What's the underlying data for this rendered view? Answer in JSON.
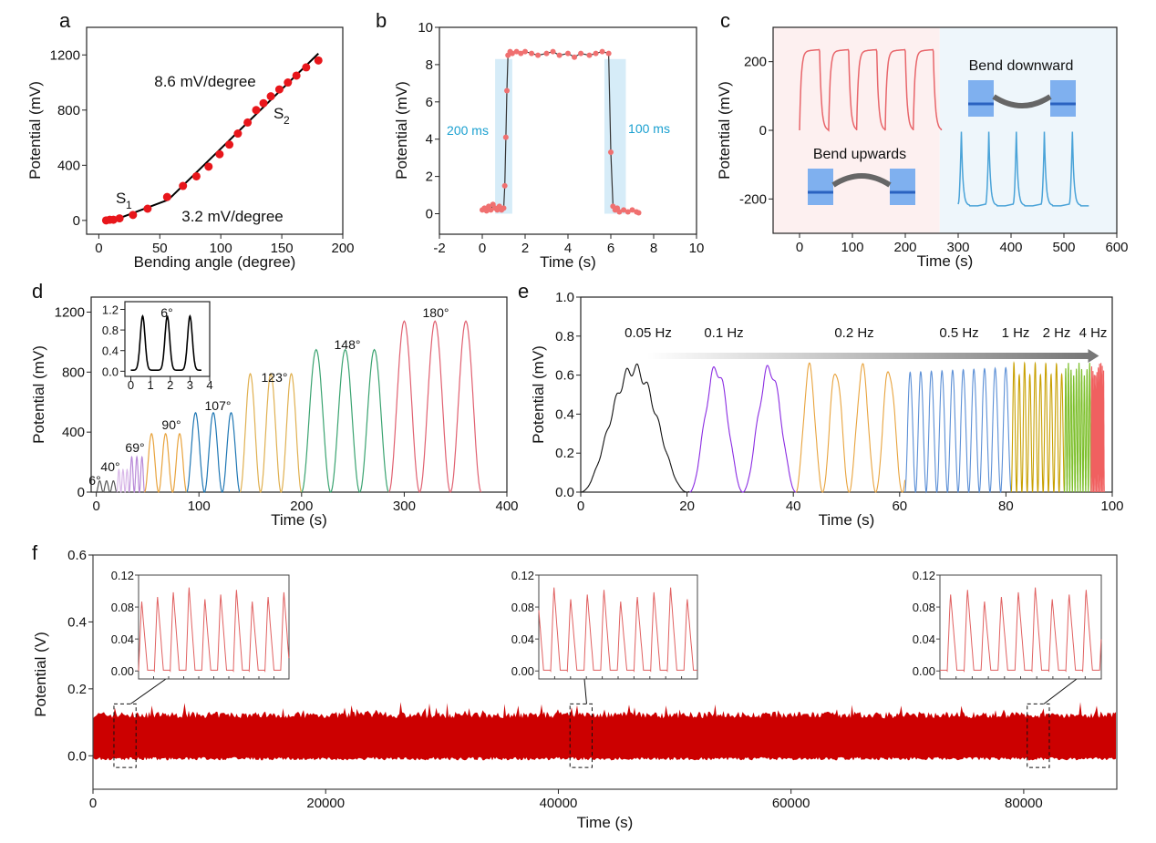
{
  "chart_data": [
    {
      "panel_label": "a",
      "type": "scatter",
      "xlabel": "Bending angle (degree)",
      "ylabel": "Potential (mV)",
      "xlim": [
        -10,
        200
      ],
      "ylim": [
        -100,
        1400
      ],
      "xticks": [
        0,
        50,
        100,
        150,
        200
      ],
      "xtick_labels": [
        "0",
        "50",
        "100",
        "150",
        "200"
      ],
      "yticks": [
        0,
        400,
        800,
        1200
      ],
      "ytick_labels": [
        "0",
        "400",
        "800",
        "1200"
      ],
      "points": {
        "x": [
          6,
          9,
          12,
          17,
          28,
          40,
          56,
          69,
          80,
          90,
          99,
          107,
          114,
          122,
          129,
          135,
          141,
          148,
          155,
          162,
          170,
          180
        ],
        "y": [
          0,
          5,
          5,
          15,
          40,
          85,
          170,
          250,
          320,
          390,
          480,
          550,
          630,
          710,
          800,
          850,
          900,
          950,
          1000,
          1050,
          1110,
          1160
        ]
      },
      "fits": [
        {
          "x": [
            18,
            57
          ],
          "y": [
            20,
            150
          ]
        },
        {
          "x": [
            57,
            180
          ],
          "y": [
            150,
            1210
          ]
        }
      ],
      "point_color": "#e8161b",
      "annotations": [
        "8.6 mV/degree",
        "3.2 mV/degree"
      ],
      "segment_labels": [
        {
          "text": "S",
          "sub": "1"
        },
        {
          "text": "S",
          "sub": "2"
        }
      ]
    },
    {
      "panel_label": "b",
      "type": "line",
      "xlabel": "Time (s)",
      "ylabel": "Potential (mV)",
      "xlim": [
        -2,
        10
      ],
      "ylim": [
        -1.1,
        10
      ],
      "xticks": [
        -2,
        0,
        2,
        4,
        6,
        8,
        10
      ],
      "xtick_labels": [
        "-2",
        "0",
        "2",
        "4",
        "6",
        "8",
        "10"
      ],
      "yticks": [
        0,
        2,
        4,
        6,
        8,
        10
      ],
      "ytick_labels": [
        "0",
        "2",
        "4",
        "6",
        "8",
        "10"
      ],
      "points": {
        "x": [
          0,
          0.1,
          0.2,
          0.3,
          0.4,
          0.5,
          0.6,
          0.7,
          0.8,
          0.9,
          1.0,
          1.05,
          1.1,
          1.15,
          1.2,
          1.3,
          1.4,
          1.6,
          1.8,
          2.0,
          2.3,
          2.6,
          3.0,
          3.3,
          3.6,
          4.0,
          4.3,
          4.6,
          5.0,
          5.3,
          5.6,
          5.9,
          6.0,
          6.1,
          6.2,
          6.3,
          6.4,
          6.6,
          6.8,
          7.0,
          7.2,
          7.3
        ],
        "y": [
          0.2,
          0.3,
          0.15,
          0.4,
          0.2,
          0.5,
          0.3,
          0.2,
          0.4,
          0.2,
          0.3,
          1.5,
          4.1,
          6.6,
          8.5,
          8.7,
          8.6,
          8.7,
          8.6,
          8.7,
          8.6,
          8.5,
          8.6,
          8.7,
          8.5,
          8.6,
          8.4,
          8.6,
          8.5,
          8.6,
          8.7,
          8.6,
          3.3,
          0.4,
          0.2,
          0.3,
          0.1,
          0.2,
          0.1,
          0.2,
          0.1,
          0.05
        ]
      },
      "point_color": "#f07070",
      "shaded_regions": [
        [
          0.6,
          1.4
        ],
        [
          5.7,
          6.7
        ]
      ],
      "shade_color": "#d6ecf8",
      "annotations": [
        "200 ms",
        "100 ms"
      ],
      "annotation_color": "#1aa0d0"
    },
    {
      "panel_label": "c",
      "type": "line",
      "xlabel": "Time (s)",
      "ylabel": "Potential (mV)",
      "xlim": [
        -50,
        600
      ],
      "ylim": [
        -300,
        300
      ],
      "xticks": [
        0,
        100,
        200,
        300,
        400,
        500,
        600
      ],
      "xtick_labels": [
        "0",
        "100",
        "200",
        "300",
        "400",
        "500",
        "600"
      ],
      "yticks": [
        -200,
        0,
        200
      ],
      "ytick_labels": [
        "-200",
        "0",
        "200"
      ],
      "series": [
        {
          "color": "#e8666b",
          "pulse_starts": [
            0,
            55,
            108,
            162,
            215
          ],
          "pulse_width": 38,
          "high": 230,
          "low": 0
        },
        {
          "color": "#4aa3d8",
          "pulse_starts": [
            300,
            352,
            404,
            457,
            510
          ],
          "pulse_width": 22,
          "high": 0,
          "low": -215
        }
      ],
      "background_colors": [
        "#fdf0f0",
        "#eef6fb"
      ],
      "annotations": [
        "Bend downward",
        "Bend upwards"
      ]
    },
    {
      "panel_label": "d",
      "type": "line",
      "xlabel": "Time (s)",
      "ylabel": "Potential (mV)",
      "xlim": [
        -5,
        400
      ],
      "ylim": [
        0,
        1300
      ],
      "xticks": [
        0,
        100,
        200,
        300,
        400
      ],
      "xtick_labels": [
        "0",
        "100",
        "200",
        "300",
        "400"
      ],
      "yticks": [
        0,
        400,
        800,
        1200
      ],
      "ytick_labels": [
        "0",
        "400",
        "800",
        "1200"
      ],
      "groups": [
        {
          "label": "6°",
          "t": [
            0,
            20
          ],
          "peak": 75,
          "color": "#555555"
        },
        {
          "label": "40°",
          "t": [
            20,
            32
          ],
          "peak": 150,
          "color": "#d9b8e8"
        },
        {
          "label": "69°",
          "t": [
            32,
            47
          ],
          "peak": 235,
          "color": "#b98ad8"
        },
        {
          "label": "90°",
          "t": [
            47,
            88
          ],
          "peak": 390,
          "color": "#e8a33d"
        },
        {
          "label": "107°",
          "t": [
            88,
            140
          ],
          "peak": 530,
          "color": "#1f77b4"
        },
        {
          "label": "123°",
          "t": [
            140,
            200
          ],
          "peak": 790,
          "color": "#e0b050"
        },
        {
          "label": "148°",
          "t": [
            200,
            285
          ],
          "peak": 950,
          "color": "#3aa370"
        },
        {
          "label": "180°",
          "t": [
            285,
            375
          ],
          "peak": 1140,
          "color": "#e06070"
        }
      ],
      "inset": {
        "title": "6°",
        "xlim": [
          -0.3,
          4
        ],
        "ylim": [
          -0.1,
          1.35
        ],
        "xticks": [
          0,
          1,
          2,
          3,
          4
        ],
        "xtick_labels": [
          "0",
          "1",
          "2",
          "3",
          "4"
        ],
        "yticks": [
          0,
          0.4,
          0.8,
          1.2
        ],
        "ytick_labels": [
          "0.0",
          "0.4",
          "0.8",
          "1.2"
        ],
        "peaks_t": [
          0.6,
          1.85,
          3.0
        ],
        "peak": 1.05
      }
    },
    {
      "panel_label": "e",
      "type": "line",
      "xlabel": "Time (s)",
      "ylabel": "Potential (mV)",
      "xlim": [
        0,
        100
      ],
      "ylim": [
        0,
        1.0
      ],
      "xticks": [
        0,
        20,
        40,
        60,
        80,
        100
      ],
      "xtick_labels": [
        "0",
        "20",
        "40",
        "60",
        "80",
        "100"
      ],
      "yticks": [
        0,
        0.2,
        0.4,
        0.6,
        0.8,
        1.0
      ],
      "ytick_labels": [
        "0.0",
        "0.2",
        "0.4",
        "0.6",
        "0.8",
        "1.0"
      ],
      "amplitude": 0.65,
      "segments": [
        {
          "label": "0.05 Hz",
          "freq": 0.05,
          "t": [
            0,
            20.5
          ],
          "color": "#111111"
        },
        {
          "label": "0.1 Hz",
          "freq": 0.1,
          "t": [
            20.5,
            40.5
          ],
          "color": "#8a2be2"
        },
        {
          "label": "0.2 Hz",
          "freq": 0.2,
          "t": [
            40.5,
            61
          ],
          "color": "#e8a33d"
        },
        {
          "label": "0.5 Hz",
          "freq": 0.5,
          "t": [
            61,
            81
          ],
          "color": "#5b8fd6"
        },
        {
          "label": "1 Hz",
          "freq": 1,
          "t": [
            81,
            91
          ],
          "color": "#c8a000"
        },
        {
          "label": "2 Hz",
          "freq": 2,
          "t": [
            91,
            96
          ],
          "color": "#7cbf2a"
        },
        {
          "label": "4 Hz",
          "freq": 4,
          "t": [
            96,
            98.5
          ],
          "color": "#f06060"
        }
      ]
    },
    {
      "panel_label": "f",
      "type": "line",
      "xlabel": "Time (s)",
      "ylabel": "Potential (V)",
      "xlim": [
        0,
        88000
      ],
      "ylim": [
        -0.1,
        0.6
      ],
      "xticks": [
        0,
        20000,
        40000,
        60000,
        80000
      ],
      "xtick_labels": [
        "0",
        "20000",
        "40000",
        "60000",
        "80000"
      ],
      "yticks": [
        0,
        0.2,
        0.4,
        0.6
      ],
      "ytick_labels": [
        "0.0",
        "0.2",
        "0.4",
        "0.6"
      ],
      "band": [
        0,
        0.12
      ],
      "color": "#cc0000",
      "zoom_regions": [
        [
          1800,
          3700
        ],
        [
          41000,
          42900
        ],
        [
          80300,
          82200
        ]
      ],
      "inset_yticks": [
        0,
        0.04,
        0.08,
        0.12
      ],
      "inset_ytick_labels": [
        "0.00",
        "0.04",
        "0.08",
        "0.12"
      ],
      "inset_color": "#e06060"
    }
  ]
}
